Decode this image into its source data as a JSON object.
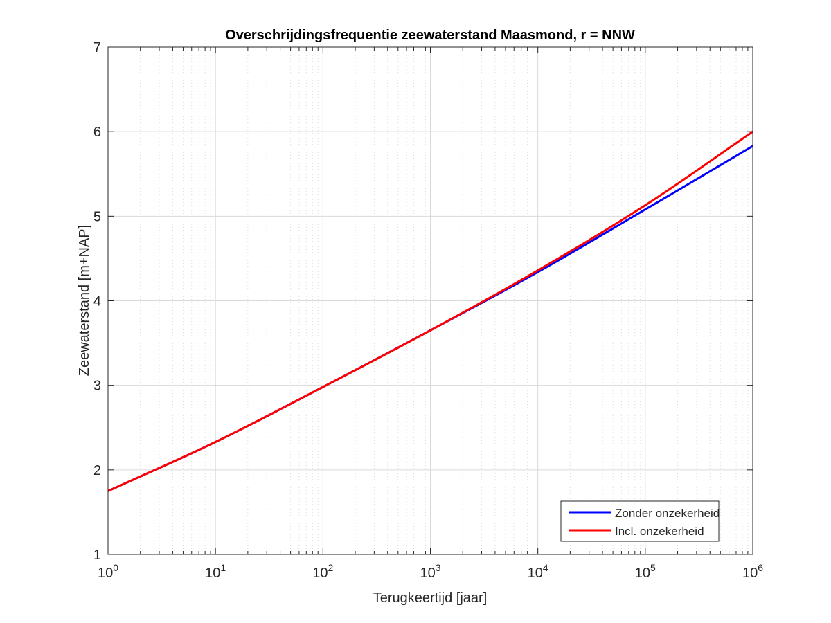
{
  "chart_data": {
    "type": "line",
    "title": "Overschrijdingsfrequentie zeewaterstand Maasmond, r = NNW",
    "xlabel": "Terugkeertijd [jaar]",
    "ylabel": "Zeewaterstand [m+NAP]",
    "xscale": "log",
    "xlim": [
      1,
      1000000
    ],
    "ylim": [
      1,
      7
    ],
    "x_tick_labels": [
      {
        "base": "10",
        "exp": "0"
      },
      {
        "base": "10",
        "exp": "1"
      },
      {
        "base": "10",
        "exp": "2"
      },
      {
        "base": "10",
        "exp": "3"
      },
      {
        "base": "10",
        "exp": "4"
      },
      {
        "base": "10",
        "exp": "5"
      },
      {
        "base": "10",
        "exp": "6"
      }
    ],
    "y_ticks": [
      1,
      2,
      3,
      4,
      5,
      6,
      7
    ],
    "grid": true,
    "minor_grid": true,
    "legend_position": "bottom-right",
    "x": [
      1,
      10,
      100,
      1000,
      10000,
      100000,
      1000000
    ],
    "series": [
      {
        "name": "Zonder onzekerheid",
        "color": "#0000ff",
        "values": [
          1.75,
          2.33,
          2.98,
          3.65,
          4.34,
          5.08,
          5.83
        ]
      },
      {
        "name": "Incl. onzekerheid",
        "color": "#ff0000",
        "values": [
          1.75,
          2.33,
          2.98,
          3.65,
          4.36,
          5.13,
          6.0
        ]
      }
    ]
  }
}
